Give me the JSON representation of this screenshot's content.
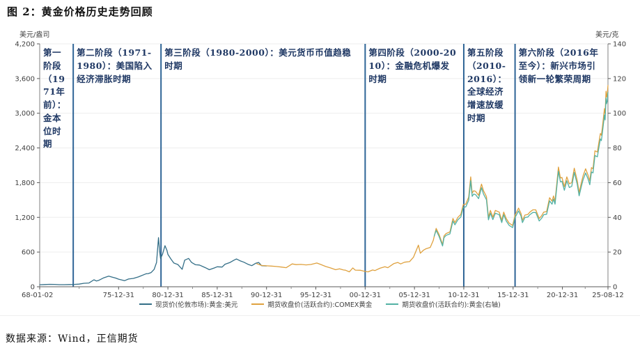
{
  "page": {
    "title": "图 2：黄金价格历史走势回顾",
    "source": "数据来源：Wind，正信期货"
  },
  "chart_data": {
    "type": "line",
    "title": "黄金价格历史走势回顾",
    "grid": "horizontal-faint",
    "legend_position": "bottom-center",
    "left_axis": {
      "label": "美元/盎司",
      "min": 0,
      "max": 4200,
      "tick_step": 600,
      "tick_labels": [
        "4,200",
        "3,600",
        "3,000",
        "2,400",
        "1,800",
        "1,200",
        "600",
        "0"
      ]
    },
    "right_axis": {
      "label": "美元/克",
      "min": 0,
      "max": 140,
      "tick_step": 20,
      "tick_labels": [
        "140",
        "120",
        "100",
        "80",
        "60",
        "40",
        "20",
        "0"
      ]
    },
    "x_axis": {
      "tick_labels": [
        "68-01-02",
        "75-12-31",
        "80-12-31",
        "85-12-31",
        "90-12-31",
        "95-12-31",
        "00-12-31",
        "05-12-31",
        "10-12-31",
        "15-12-31",
        "20-12-31",
        "25-08-12"
      ],
      "tick_years": [
        1968.0,
        1976.0,
        1981.0,
        1986.0,
        1991.0,
        1996.0,
        2001.0,
        2006.0,
        2011.0,
        2016.0,
        2021.0,
        2025.62
      ],
      "domain_years": [
        1968.0,
        2025.62
      ]
    },
    "phases": [
      {
        "label": "第一阶段（1971年前）：金本位时期"
      },
      {
        "label": "第二阶段（1971-1980）：美国陷入经济滞胀时期"
      },
      {
        "label": "第三阶段（1980-2000）：美元货币币值趋稳时期"
      },
      {
        "label": "第四阶段（2000-2010）：金融危机爆发时期"
      },
      {
        "label": "第五阶段（2010-2016）：全球经济增速放缓时期"
      },
      {
        "label": "第六阶段（2016年至今）：新兴市场引领新一轮繁荣周期"
      }
    ],
    "divider_years": [
      1971.4,
      1980.3,
      2001.0,
      2011.0,
      2016.2
    ],
    "divider_color": "#2e6496",
    "legend": [
      {
        "label": "现货价(伦敦市场):黄金:美元",
        "color": "#336e87"
      },
      {
        "label": "期货收盘价(活跃合约):COMEX黄金",
        "color": "#dfa13e"
      },
      {
        "label": "期货收盘价(活跃合约):黄金(右轴)",
        "color": "#52b1a4"
      }
    ],
    "series": [
      {
        "name": "现货价(伦敦市场):黄金:美元",
        "axis": "left",
        "color": "#336e87",
        "unit": "USD/oz",
        "points": [
          [
            1968,
            35
          ],
          [
            1968.5,
            39
          ],
          [
            1969,
            42
          ],
          [
            1969.5,
            41
          ],
          [
            1970,
            36
          ],
          [
            1970.5,
            36
          ],
          [
            1971,
            39
          ],
          [
            1971.5,
            41
          ],
          [
            1972,
            46
          ],
          [
            1972.5,
            60
          ],
          [
            1973,
            65
          ],
          [
            1973.5,
            120
          ],
          [
            1973.75,
            100
          ],
          [
            1974,
            112
          ],
          [
            1974.5,
            155
          ],
          [
            1975,
            183
          ],
          [
            1975.3,
            168
          ],
          [
            1975.7,
            150
          ],
          [
            1976,
            131
          ],
          [
            1976.6,
            105
          ],
          [
            1977,
            133
          ],
          [
            1977.5,
            145
          ],
          [
            1978,
            170
          ],
          [
            1978.8,
            225
          ],
          [
            1979,
            227
          ],
          [
            1979.3,
            245
          ],
          [
            1979.6,
            300
          ],
          [
            1979.85,
            420
          ],
          [
            1980.05,
            850
          ],
          [
            1980.15,
            630
          ],
          [
            1980.25,
            490
          ],
          [
            1980.45,
            560
          ],
          [
            1980.7,
            710
          ],
          [
            1980.9,
            630
          ],
          [
            1981,
            560
          ],
          [
            1981.3,
            480
          ],
          [
            1981.6,
            410
          ],
          [
            1982,
            385
          ],
          [
            1982.45,
            302
          ],
          [
            1982.7,
            460
          ],
          [
            1983.1,
            490
          ],
          [
            1983.4,
            420
          ],
          [
            1983.8,
            380
          ],
          [
            1984.2,
            375
          ],
          [
            1984.8,
            330
          ],
          [
            1985.2,
            295
          ],
          [
            1985.7,
            325
          ],
          [
            1986,
            345
          ],
          [
            1986.5,
            340
          ],
          [
            1986.8,
            390
          ],
          [
            1987.3,
            420
          ],
          [
            1987.7,
            460
          ],
          [
            1987.95,
            480
          ],
          [
            1988.3,
            450
          ],
          [
            1988.7,
            425
          ],
          [
            1989.1,
            390
          ],
          [
            1989.5,
            365
          ],
          [
            1989.9,
            405
          ],
          [
            1990.2,
            420
          ],
          [
            1990.5,
            365
          ],
          [
            1991,
            360
          ]
        ]
      },
      {
        "name": "期货收盘价(活跃合约):COMEX黄金",
        "axis": "left",
        "color": "#dfa13e",
        "unit": "USD/oz",
        "points": [
          [
            1990,
            400
          ],
          [
            1990.5,
            368
          ],
          [
            1991,
            362
          ],
          [
            1991.5,
            358
          ],
          [
            1992,
            350
          ],
          [
            1992.5,
            340
          ],
          [
            1993,
            330
          ],
          [
            1993.6,
            395
          ],
          [
            1994,
            383
          ],
          [
            1994.5,
            386
          ],
          [
            1995,
            378
          ],
          [
            1995.5,
            385
          ],
          [
            1996.1,
            410
          ],
          [
            1996.5,
            385
          ],
          [
            1997,
            350
          ],
          [
            1997.5,
            325
          ],
          [
            1998,
            295
          ],
          [
            1998.4,
            310
          ],
          [
            1998.8,
            290
          ],
          [
            1999,
            287
          ],
          [
            1999.4,
            258
          ],
          [
            1999.75,
            325
          ],
          [
            2000,
            288
          ],
          [
            2000.5,
            285
          ],
          [
            2001,
            265
          ],
          [
            2001.3,
            258
          ],
          [
            2001.75,
            290
          ],
          [
            2002,
            280
          ],
          [
            2002.5,
            320
          ],
          [
            2003,
            345
          ],
          [
            2003.3,
            330
          ],
          [
            2003.9,
            400
          ],
          [
            2004.3,
            420
          ],
          [
            2004.6,
            395
          ],
          [
            2005,
            425
          ],
          [
            2005.5,
            435
          ],
          [
            2005.9,
            510
          ],
          [
            2006.4,
            720
          ],
          [
            2006.6,
            580
          ],
          [
            2006.9,
            630
          ],
          [
            2007.2,
            660
          ],
          [
            2007.6,
            680
          ],
          [
            2007.9,
            800
          ],
          [
            2008.2,
            1010
          ],
          [
            2008.5,
            900
          ],
          [
            2008.85,
            730
          ],
          [
            2009,
            880
          ],
          [
            2009.2,
            920
          ],
          [
            2009.6,
            950
          ],
          [
            2009.9,
            1180
          ],
          [
            2010.1,
            1110
          ],
          [
            2010.4,
            1200
          ],
          [
            2010.7,
            1250
          ],
          [
            2010.95,
            1420
          ],
          [
            2011.2,
            1430
          ],
          [
            2011.5,
            1550
          ],
          [
            2011.7,
            1900
          ],
          [
            2011.85,
            1620
          ],
          [
            2012,
            1660
          ],
          [
            2012.2,
            1650
          ],
          [
            2012.5,
            1580
          ],
          [
            2012.8,
            1775
          ],
          [
            2013,
            1660
          ],
          [
            2013.3,
            1560
          ],
          [
            2013.5,
            1200
          ],
          [
            2013.7,
            1320
          ],
          [
            2013.95,
            1205
          ],
          [
            2014.2,
            1320
          ],
          [
            2014.6,
            1290
          ],
          [
            2014.85,
            1150
          ],
          [
            2015.05,
            1290
          ],
          [
            2015.3,
            1180
          ],
          [
            2015.6,
            1100
          ],
          [
            2015.95,
            1060
          ],
          [
            2016.2,
            1240
          ],
          [
            2016.55,
            1360
          ],
          [
            2016.8,
            1270
          ],
          [
            2016.95,
            1150
          ],
          [
            2017.2,
            1240
          ],
          [
            2017.5,
            1250
          ],
          [
            2017.7,
            1290
          ],
          [
            2018,
            1330
          ],
          [
            2018.3,
            1330
          ],
          [
            2018.65,
            1180
          ],
          [
            2018.9,
            1230
          ],
          [
            2019.1,
            1290
          ],
          [
            2019.4,
            1300
          ],
          [
            2019.7,
            1540
          ],
          [
            2019.95,
            1480
          ],
          [
            2020.1,
            1570
          ],
          [
            2020.25,
            1480
          ],
          [
            2020.6,
            2070
          ],
          [
            2020.8,
            1880
          ],
          [
            2020.95,
            1890
          ],
          [
            2021.2,
            1730
          ],
          [
            2021.45,
            1900
          ],
          [
            2021.7,
            1780
          ],
          [
            2021.95,
            1800
          ],
          [
            2022.2,
            2050
          ],
          [
            2022.5,
            1840
          ],
          [
            2022.7,
            1630
          ],
          [
            2022.95,
            1820
          ],
          [
            2023.1,
            1920
          ],
          [
            2023.35,
            2040
          ],
          [
            2023.6,
            1930
          ],
          [
            2023.78,
            1830
          ],
          [
            2023.95,
            2060
          ],
          [
            2024.1,
            2040
          ],
          [
            2024.3,
            2350
          ],
          [
            2024.55,
            2330
          ],
          [
            2024.7,
            2500
          ],
          [
            2024.85,
            2650
          ],
          [
            2024.95,
            2620
          ],
          [
            2025.05,
            2750
          ],
          [
            2025.15,
            2900
          ],
          [
            2025.27,
            3080
          ],
          [
            2025.33,
            2990
          ],
          [
            2025.42,
            3380
          ],
          [
            2025.48,
            3280
          ],
          [
            2025.55,
            3330
          ],
          [
            2025.62,
            3480
          ]
        ]
      },
      {
        "name": "期货收盘价(活跃合约):黄金(右轴)",
        "axis": "right",
        "color": "#52b1a4",
        "unit": "USD/g",
        "points": [
          [
            2008,
            29.2
          ],
          [
            2008.2,
            32.5
          ],
          [
            2008.5,
            28.9
          ],
          [
            2008.85,
            23.5
          ],
          [
            2009,
            28.3
          ],
          [
            2009.2,
            29.6
          ],
          [
            2009.6,
            30.5
          ],
          [
            2009.9,
            37.9
          ],
          [
            2010.1,
            35.7
          ],
          [
            2010.4,
            38.6
          ],
          [
            2010.7,
            40.2
          ],
          [
            2010.95,
            45.7
          ],
          [
            2011.2,
            46.0
          ],
          [
            2011.5,
            49.8
          ],
          [
            2011.7,
            61.1
          ],
          [
            2011.85,
            52.1
          ],
          [
            2012,
            53.4
          ],
          [
            2012.2,
            53.1
          ],
          [
            2012.5,
            50.8
          ],
          [
            2012.8,
            57.1
          ],
          [
            2013,
            53.4
          ],
          [
            2013.3,
            50.2
          ],
          [
            2013.5,
            38.6
          ],
          [
            2013.7,
            42.4
          ],
          [
            2013.95,
            38.7
          ],
          [
            2014.2,
            42.4
          ],
          [
            2014.6,
            41.5
          ],
          [
            2014.85,
            37.0
          ],
          [
            2015.05,
            41.5
          ],
          [
            2015.3,
            37.9
          ],
          [
            2015.6,
            35.4
          ],
          [
            2015.95,
            34.1
          ],
          [
            2016.2,
            39.9
          ],
          [
            2016.55,
            43.7
          ],
          [
            2016.8,
            40.8
          ],
          [
            2016.95,
            37.0
          ],
          [
            2017.2,
            39.9
          ],
          [
            2017.5,
            40.2
          ],
          [
            2017.7,
            41.5
          ],
          [
            2018,
            42.8
          ],
          [
            2018.3,
            42.8
          ],
          [
            2018.65,
            37.9
          ],
          [
            2018.9,
            39.5
          ],
          [
            2019.1,
            41.5
          ],
          [
            2019.4,
            41.8
          ],
          [
            2019.7,
            49.5
          ],
          [
            2019.95,
            47.6
          ],
          [
            2020.1,
            50.5
          ],
          [
            2020.25,
            47.6
          ],
          [
            2020.6,
            66.6
          ],
          [
            2020.8,
            60.5
          ],
          [
            2020.95,
            60.8
          ],
          [
            2021.2,
            55.6
          ],
          [
            2021.45,
            61.1
          ],
          [
            2021.7,
            57.2
          ],
          [
            2021.95,
            57.9
          ],
          [
            2022.2,
            65.9
          ],
          [
            2022.5,
            59.2
          ],
          [
            2022.7,
            52.4
          ],
          [
            2022.95,
            58.5
          ],
          [
            2023.1,
            61.7
          ],
          [
            2023.35,
            65.6
          ],
          [
            2023.6,
            62.1
          ],
          [
            2023.78,
            58.8
          ],
          [
            2023.95,
            66.2
          ],
          [
            2024.1,
            65.6
          ],
          [
            2024.3,
            75.6
          ],
          [
            2024.55,
            74.9
          ],
          [
            2024.7,
            80.4
          ],
          [
            2024.85,
            85.2
          ],
          [
            2024.95,
            84.2
          ],
          [
            2025.05,
            88.4
          ],
          [
            2025.15,
            93.2
          ],
          [
            2025.27,
            99.0
          ],
          [
            2025.33,
            96.1
          ],
          [
            2025.42,
            108.7
          ],
          [
            2025.48,
            105.5
          ],
          [
            2025.55,
            107.1
          ],
          [
            2025.62,
            111.9
          ]
        ]
      }
    ]
  }
}
